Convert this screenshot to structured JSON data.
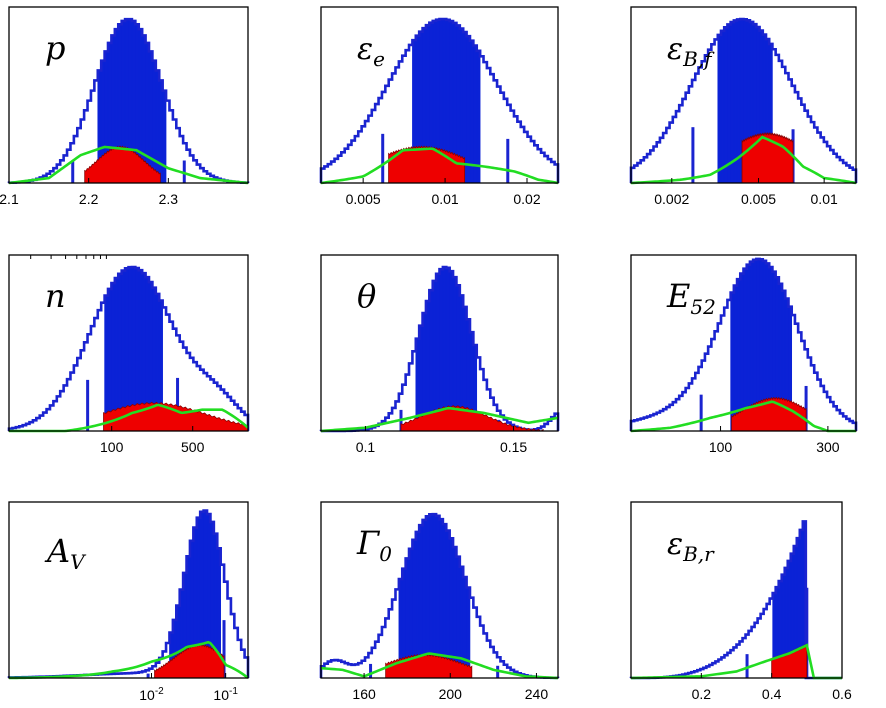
{
  "figure": {
    "description_free": true,
    "colors": {
      "credible_68": "#0b22d6",
      "credible_95_outline": "#1a24d0",
      "posterior_red": "#ee0000",
      "prior_green": "#22dd22",
      "axes": "#000000"
    }
  },
  "chart_data": [
    {
      "type": "histogram",
      "title": "p",
      "title_sub": "",
      "xscale": "linear",
      "xlim": [
        2.1,
        2.4
      ],
      "tick_values": [
        2.1,
        2.2,
        2.3
      ],
      "tick_labels": [
        "2.1",
        "2.2",
        "2.3"
      ],
      "blue_peak": 2.25,
      "blue_width": 0.042,
      "blue_68": [
        2.21,
        2.295
      ],
      "blue_95": [
        2.18,
        2.32
      ],
      "red_peak": 2.24,
      "red_width": 0.03,
      "red_range": [
        2.195,
        2.29
      ],
      "red_height": 0.22,
      "green": [
        [
          2.1,
          0.0
        ],
        [
          2.15,
          0.03
        ],
        [
          2.19,
          0.17
        ],
        [
          2.22,
          0.22
        ],
        [
          2.26,
          0.2
        ],
        [
          2.3,
          0.09
        ],
        [
          2.34,
          0.03
        ],
        [
          2.4,
          0.0
        ]
      ]
    },
    {
      "type": "histogram",
      "title": "ε",
      "title_sub": "e",
      "xscale": "log",
      "xlim": [
        0.0035,
        0.026
      ],
      "tick_values": [
        0.005,
        0.01,
        0.02
      ],
      "tick_labels": [
        "0.005",
        "0.01",
        "0.02"
      ],
      "blue_peak": 0.0098,
      "blue_width": 0.2,
      "blue_68": [
        0.0076,
        0.0133
      ],
      "blue_95": [
        0.0059,
        0.017
      ],
      "red_peak": 0.0082,
      "red_width": 0.18,
      "red_range": [
        0.0062,
        0.0118
      ],
      "red_height": 0.22,
      "green": [
        [
          0.0035,
          0.0
        ],
        [
          0.005,
          0.04
        ],
        [
          0.007,
          0.2
        ],
        [
          0.009,
          0.21
        ],
        [
          0.011,
          0.12
        ],
        [
          0.014,
          0.1
        ],
        [
          0.018,
          0.07
        ],
        [
          0.022,
          0.02
        ],
        [
          0.026,
          0.0
        ]
      ]
    },
    {
      "type": "histogram",
      "title": "ε",
      "title_sub": "B,f",
      "xscale": "log",
      "xlim": [
        0.0013,
        0.014
      ],
      "tick_values": [
        0.002,
        0.005,
        0.01
      ],
      "tick_labels": [
        "0.002",
        "0.005",
        "0.01"
      ],
      "blue_peak": 0.0042,
      "blue_width": 0.23,
      "blue_68": [
        0.0033,
        0.0058
      ],
      "blue_95": [
        0.0025,
        0.0072
      ],
      "red_peak": 0.0055,
      "red_width": 0.2,
      "red_range": [
        0.0042,
        0.0072
      ],
      "red_height": 0.3,
      "green": [
        [
          0.0013,
          0.0
        ],
        [
          0.0022,
          0.02
        ],
        [
          0.003,
          0.05
        ],
        [
          0.004,
          0.15
        ],
        [
          0.0052,
          0.28
        ],
        [
          0.0065,
          0.22
        ],
        [
          0.008,
          0.1
        ],
        [
          0.01,
          0.03
        ],
        [
          0.014,
          0.0
        ]
      ]
    },
    {
      "type": "histogram",
      "title": "n",
      "title_sub": "",
      "xscale": "log",
      "xlim": [
        13,
        1500
      ],
      "tick_values": [
        100,
        500
      ],
      "tick_labels": [
        "100",
        "500"
      ],
      "blue_peak": 150,
      "blue_width": 0.36,
      "blue_68": [
        85,
        280
      ],
      "blue_95": [
        62,
        370
      ],
      "secondary_bump": {
        "peak": 820,
        "width": 0.2,
        "height": 0.16
      },
      "red_peak": 230,
      "red_width": 0.45,
      "red_range": [
        85,
        1500
      ],
      "red_height": 0.17,
      "green": [
        [
          13,
          0.0
        ],
        [
          40,
          0.0
        ],
        [
          80,
          0.04
        ],
        [
          150,
          0.11
        ],
        [
          250,
          0.16
        ],
        [
          400,
          0.11
        ],
        [
          600,
          0.13
        ],
        [
          900,
          0.13
        ],
        [
          1500,
          0.02
        ]
      ]
    },
    {
      "type": "histogram",
      "title": "θ",
      "title_sub": "",
      "xscale": "linear",
      "xlim": [
        0.085,
        0.165
      ],
      "tick_values": [
        0.1,
        0.15
      ],
      "tick_labels": [
        "0.1",
        "0.15"
      ],
      "blue_peak": 0.127,
      "blue_width": 0.0088,
      "blue_68": [
        0.117,
        0.138
      ],
      "blue_95": [
        0.112,
        0.145
      ],
      "secondary_bump": {
        "peak": 0.167,
        "width": 0.004,
        "height": 0.13
      },
      "red_peak": 0.13,
      "red_width": 0.011,
      "red_range": [
        0.112,
        0.16
      ],
      "red_height": 0.15,
      "green": [
        [
          0.085,
          0.0
        ],
        [
          0.1,
          0.02
        ],
        [
          0.115,
          0.08
        ],
        [
          0.128,
          0.14
        ],
        [
          0.14,
          0.11
        ],
        [
          0.155,
          0.05
        ],
        [
          0.165,
          0.08
        ]
      ]
    },
    {
      "type": "histogram",
      "title": "E",
      "title_sub": "52",
      "xscale": "log",
      "xlim": [
        40,
        400
      ],
      "tick_values": [
        100,
        300
      ],
      "tick_labels": [
        "100",
        "300"
      ],
      "blue_peak": 150,
      "blue_width": 0.17,
      "blue_68": [
        112,
        205
      ],
      "blue_95": [
        82,
        240
      ],
      "left_tail": {
        "peak": 75,
        "width": 0.25,
        "height": 0.1
      },
      "red_peak": 175,
      "red_width": 0.15,
      "red_range": [
        112,
        240
      ],
      "red_height": 0.2,
      "green": [
        [
          40,
          0.0
        ],
        [
          60,
          0.02
        ],
        [
          90,
          0.08
        ],
        [
          130,
          0.14
        ],
        [
          170,
          0.18
        ],
        [
          210,
          0.12
        ],
        [
          260,
          0.03
        ],
        [
          300,
          0.0
        ],
        [
          400,
          0.0
        ]
      ]
    },
    {
      "type": "histogram",
      "title": "A",
      "title_sub": "V",
      "xscale": "log",
      "xlim": [
        0.00012,
        0.2
      ],
      "tick_values": [
        0.01,
        0.1
      ],
      "tick_labels": [
        "10^-2",
        "10^-1"
      ],
      "blue_peak": 0.052,
      "blue_width": 0.27,
      "blue_68": [
        0.017,
        0.09
      ],
      "blue_95": [
        0.009,
        0.095
      ],
      "left_tail": {
        "peak": 0.01,
        "width": 0.9,
        "height": 0.03
      },
      "red_peak": 0.045,
      "red_width": 0.35,
      "red_range": [
        0.011,
        0.095
      ],
      "red_height": 0.2,
      "green": [
        [
          0.00012,
          0.0
        ],
        [
          0.0007,
          0.01
        ],
        [
          0.003,
          0.04
        ],
        [
          0.01,
          0.1
        ],
        [
          0.03,
          0.19
        ],
        [
          0.06,
          0.22
        ],
        [
          0.1,
          0.08
        ],
        [
          0.2,
          0.0
        ]
      ]
    },
    {
      "type": "histogram",
      "title": "Γ",
      "title_sub": "0",
      "xscale": "linear",
      "xlim": [
        140,
        250
      ],
      "tick_values": [
        160,
        200,
        240
      ],
      "tick_labels": [
        "160",
        "200",
        "240"
      ],
      "blue_peak": 192,
      "blue_width": 15,
      "blue_68": [
        176,
        209
      ],
      "blue_95": [
        163,
        222
      ],
      "left_bump": {
        "peak": 146,
        "width": 6,
        "height": 0.1
      },
      "red_peak": 188,
      "red_width": 18,
      "red_range": [
        170,
        210
      ],
      "red_height": 0.14,
      "green": [
        [
          140,
          0.06
        ],
        [
          150,
          0.05
        ],
        [
          160,
          0.01
        ],
        [
          175,
          0.09
        ],
        [
          190,
          0.15
        ],
        [
          205,
          0.12
        ],
        [
          220,
          0.05
        ],
        [
          235,
          0.01
        ],
        [
          250,
          0.0
        ]
      ]
    },
    {
      "type": "histogram",
      "title": "ε",
      "title_sub": "B,r",
      "xscale": "linear",
      "xlim": [
        0.0,
        0.6
      ],
      "tick_values": [
        0.2,
        0.4,
        0.6
      ],
      "tick_labels": [
        "0.2",
        "0.4",
        "0.6"
      ],
      "shape": "rising_to_cutoff",
      "cutoff": 0.5,
      "blue_68": [
        0.4,
        0.5
      ],
      "blue_95": [
        0.33,
        0.5
      ],
      "red_range": [
        0.4,
        0.5
      ],
      "red_height": 0.2,
      "green": [
        [
          0.0,
          0.0
        ],
        [
          0.2,
          0.01
        ],
        [
          0.3,
          0.04
        ],
        [
          0.38,
          0.1
        ],
        [
          0.45,
          0.15
        ],
        [
          0.5,
          0.2
        ],
        [
          0.52,
          0.0
        ]
      ]
    }
  ]
}
